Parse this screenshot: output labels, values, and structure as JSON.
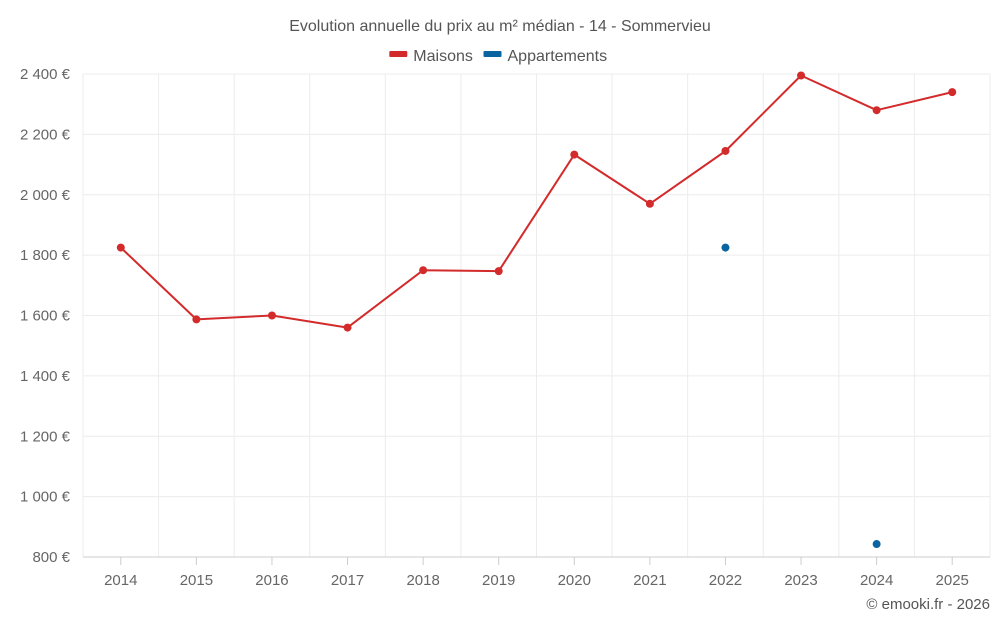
{
  "chart_data": {
    "type": "line",
    "title": "Evolution annuelle du prix au m² médian - 14 - Sommervieu",
    "categories": [
      "2014",
      "2015",
      "2016",
      "2017",
      "2018",
      "2019",
      "2020",
      "2021",
      "2022",
      "2023",
      "2024",
      "2025"
    ],
    "series": [
      {
        "name": "Maisons",
        "color": "#d32b2b",
        "values": [
          1825,
          1587,
          1600,
          1560,
          1750,
          1747,
          2133,
          1970,
          2145,
          2395,
          2280,
          2340
        ]
      },
      {
        "name": "Appartements",
        "color": "#0a64a0",
        "values": [
          null,
          null,
          null,
          null,
          null,
          null,
          null,
          null,
          1825,
          null,
          843,
          null
        ]
      }
    ],
    "yticks": [
      800,
      1000,
      1200,
      1400,
      1600,
      1800,
      2000,
      2200,
      2400
    ],
    "ytick_labels": [
      "800 €",
      "1 000 €",
      "1 200 €",
      "1 400 €",
      "1 600 €",
      "1 800 €",
      "2 000 €",
      "2 200 €",
      "2 400 €"
    ],
    "ylim": [
      800,
      2400
    ],
    "xlabel": "",
    "ylabel": "",
    "legend_position": "top-center",
    "grid": true,
    "credit": "© emooki.fr - 2026"
  }
}
